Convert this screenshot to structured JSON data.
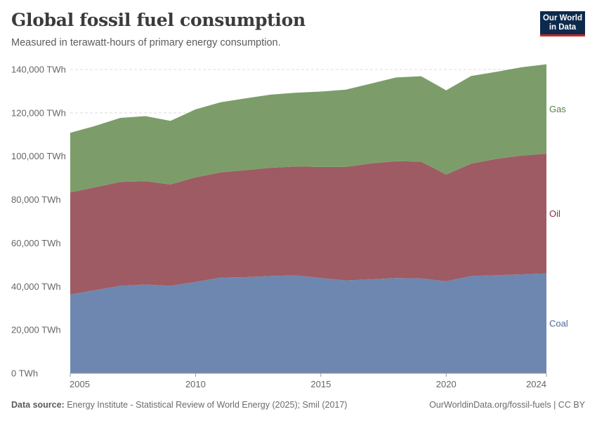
{
  "header": {
    "title": "Global fossil fuel consumption",
    "subtitle": "Measured in terawatt-hours of primary energy consumption.",
    "logo_line1": "Our World",
    "logo_line2": "in Data"
  },
  "footer": {
    "source_label": "Data source:",
    "source_text": "Energy Institute - Statistical Review of World Energy (2025); Smil (2017)",
    "url": "OurWorldinData.org/fossil-fuels | CC BY"
  },
  "colors": {
    "coal": "#6e87b0",
    "oil": "#9e5b63",
    "gas": "#7c9d6a",
    "coal_label": "#4c6a9c",
    "oil_label": "#883039",
    "gas_label": "#578145",
    "grid": "#dddddd",
    "axis": "#999999"
  },
  "chart_data": {
    "type": "area",
    "stacked": true,
    "x": [
      2005,
      2006,
      2007,
      2008,
      2009,
      2010,
      2011,
      2012,
      2013,
      2014,
      2015,
      2016,
      2017,
      2018,
      2019,
      2020,
      2021,
      2022,
      2023,
      2024
    ],
    "series": [
      {
        "name": "Coal",
        "color_key": "coal",
        "values": [
          36300,
          38300,
          40300,
          40900,
          40300,
          42100,
          44100,
          44300,
          44800,
          45100,
          43900,
          42800,
          43300,
          43900,
          43700,
          42400,
          44800,
          45200,
          45600,
          46000
        ]
      },
      {
        "name": "Oil",
        "color_key": "oil",
        "values": [
          47100,
          47400,
          47900,
          47600,
          46700,
          48200,
          48500,
          49300,
          49900,
          50200,
          51200,
          52300,
          53400,
          53800,
          53800,
          49200,
          51800,
          53600,
          54700,
          55200
        ]
      },
      {
        "name": "Gas",
        "color_key": "gas",
        "values": [
          27400,
          28300,
          29500,
          30000,
          29300,
          31300,
          32300,
          33100,
          33700,
          34000,
          34700,
          35600,
          36800,
          38600,
          39400,
          38800,
          40400,
          40100,
          40700,
          41200
        ]
      }
    ],
    "xlim": [
      2005,
      2024
    ],
    "ylim": [
      0,
      140000
    ],
    "x_ticks": [
      2005,
      2010,
      2015,
      2020,
      2024
    ],
    "y_ticks": [
      0,
      20000,
      40000,
      60000,
      80000,
      100000,
      120000,
      140000
    ],
    "y_tick_labels": [
      "0 TWh",
      "20,000 TWh",
      "40,000 TWh",
      "60,000 TWh",
      "80,000 TWh",
      "100,000 TWh",
      "120,000 TWh",
      "140,000 TWh"
    ],
    "grid": true,
    "legend": "inline-right"
  }
}
